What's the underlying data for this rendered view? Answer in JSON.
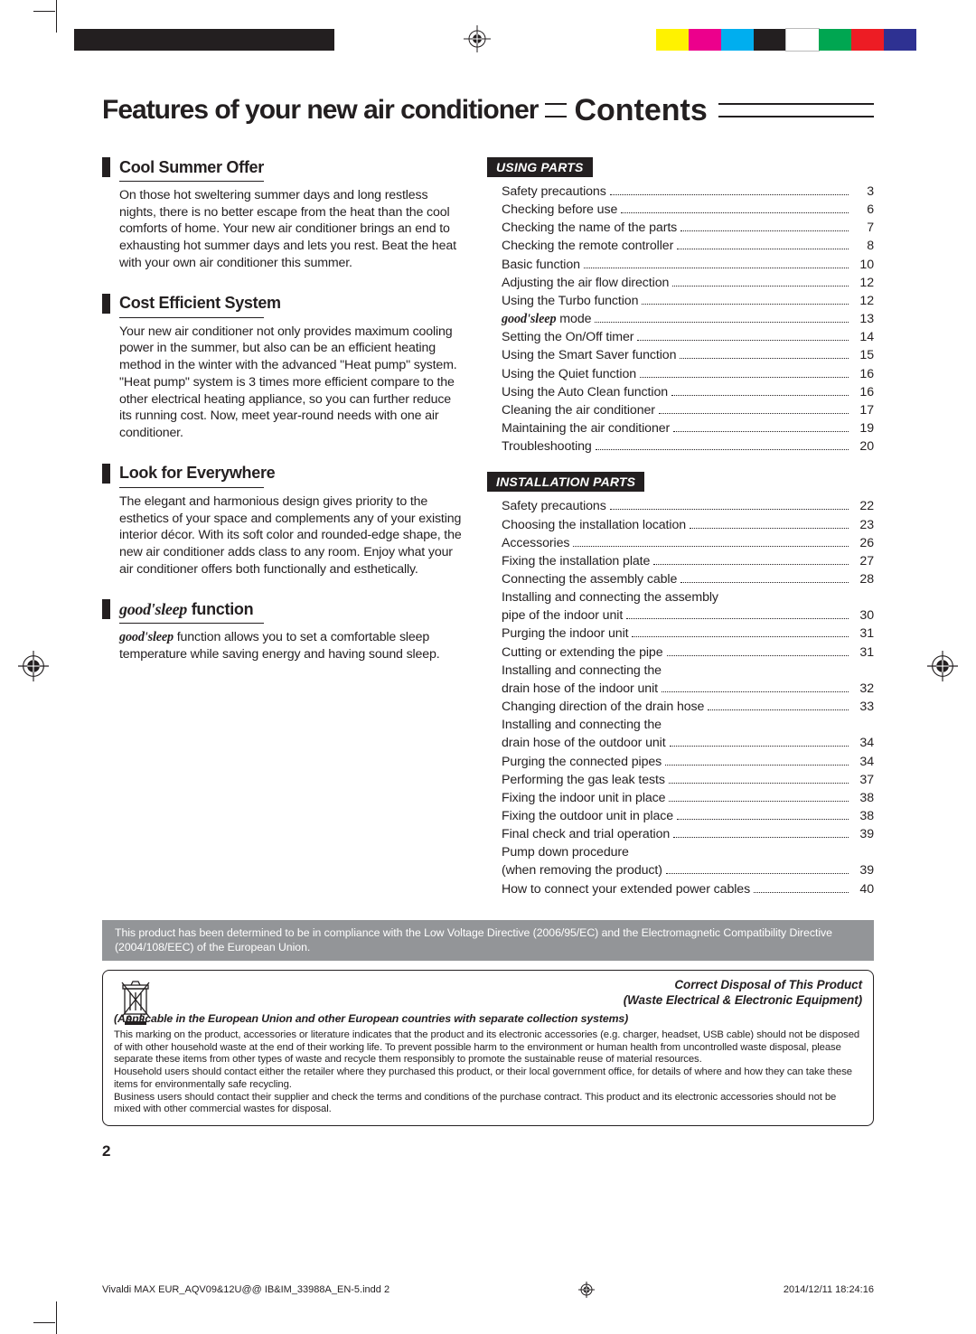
{
  "registration_colorbar_left": [
    "#231f20",
    "#231f20",
    "#231f20",
    "#231f20",
    "#231f20",
    "#231f20",
    "#231f20",
    "#231f20"
  ],
  "registration_colorbar_right": [
    "#fff200",
    "#ec008c",
    "#00aeef",
    "#231f20",
    "#ffffff",
    "#00a651",
    "#ed1c24",
    "#2e3192"
  ],
  "titles": {
    "features": "Features of your new air conditioner",
    "contents": "Contents"
  },
  "features": [
    {
      "title": "Cool Summer Offer",
      "body": "On those hot sweltering summer days and long restless nights, there is no better escape from the heat than the cool comforts of home. Your new air conditioner brings an end to exhausting hot summer days and lets you rest. Beat the heat with your own air conditioner this summer."
    },
    {
      "title": "Cost Efficient System",
      "body": "Your new air conditioner not only provides maximum cooling power in the summer, but also can be an efficient heating method in the winter with the advanced \"Heat pump\" system. \"Heat pump\" system is 3 times more efficient compare to the other electrical heating appliance, so you can further reduce its running cost. Now, meet year-round needs with one air conditioner."
    },
    {
      "title": "Look for Everywhere",
      "body": "The elegant and harmonious design gives priority to the esthetics of your space and complements any of your existing interior décor. With its soft color and rounded-edge shape, the new air conditioner adds class to any room. Enjoy what your air conditioner offers both functionally and esthetically."
    }
  ],
  "good_sleep": {
    "title_prefix": "good'sleep",
    "title_suffix": " function",
    "body_prefix": "good'sleep",
    "body": " function allows you to set a comfortable sleep temperature while saving energy and having sound sleep."
  },
  "toc": {
    "using": {
      "label": "USING PARTS",
      "items": [
        {
          "t": "Safety precautions",
          "p": "3"
        },
        {
          "t": "Checking before use",
          "p": "6"
        },
        {
          "t": "Checking the name of the parts",
          "p": "7"
        },
        {
          "t": "Checking the remote controller",
          "p": "8"
        },
        {
          "t": "Basic function",
          "p": "10"
        },
        {
          "t": "Adjusting the air flow direction",
          "p": "12"
        },
        {
          "t": "Using the Turbo function",
          "p": "12"
        },
        {
          "t_prefix": "good'sleep",
          "t": " mode",
          "p": "13"
        },
        {
          "t": "Setting the On/Off timer",
          "p": "14"
        },
        {
          "t": "Using the Smart Saver function",
          "p": "15"
        },
        {
          "t": "Using the Quiet function",
          "p": "16"
        },
        {
          "t": "Using the Auto Clean function",
          "p": "16"
        },
        {
          "t": "Cleaning the air conditioner",
          "p": "17"
        },
        {
          "t": "Maintaining the air conditioner",
          "p": "19"
        },
        {
          "t": "Troubleshooting",
          "p": "20"
        }
      ]
    },
    "install": {
      "label": "INSTALLATION PARTS",
      "items": [
        {
          "t": "Safety precautions",
          "p": "22"
        },
        {
          "t": "Choosing the installation location",
          "p": "23"
        },
        {
          "t": "Accessories",
          "p": "26"
        },
        {
          "t": "Fixing the installation plate",
          "p": "27"
        },
        {
          "t": "Connecting the assembly cable",
          "p": "28"
        },
        {
          "t": "Installing and connecting the assembly",
          "nopage": true
        },
        {
          "t": "pipe of the indoor unit",
          "p": "30"
        },
        {
          "t": "Purging the indoor unit",
          "p": "31"
        },
        {
          "t": "Cutting or extending the pipe",
          "p": "31"
        },
        {
          "t": "Installing and connecting the",
          "nopage": true
        },
        {
          "t": "drain hose of the indoor unit",
          "p": "32"
        },
        {
          "t": "Changing direction of the drain hose",
          "p": "33"
        },
        {
          "t": "Installing and connecting the",
          "nopage": true
        },
        {
          "t": "drain hose of the outdoor unit",
          "p": "34"
        },
        {
          "t": "Purging the connected pipes",
          "p": "34"
        },
        {
          "t": "Performing the gas leak tests",
          "p": "37"
        },
        {
          "t": "Fixing the indoor unit in place",
          "p": "38"
        },
        {
          "t": "Fixing the outdoor unit in place",
          "p": "38"
        },
        {
          "t": "Final check and trial operation",
          "p": "39"
        },
        {
          "t": "Pump down procedure",
          "nopage": true
        },
        {
          "t": "(when removing the product)",
          "p": "39"
        },
        {
          "t": "How to connect your extended power cables",
          "p": "40"
        }
      ]
    }
  },
  "notice": "This product has been determined to be in compliance with the Low Voltage Directive (2006/95/EC) and the Electromagnetic Compatibility Directive (2004/108/EEC) of the European Union.",
  "disposal": {
    "head1": "Correct Disposal of This Product",
    "head2": "(Waste Electrical & Electronic Equipment)",
    "sub": "(Applicable in the European Union and other European countries with separate collection systems)",
    "p1": "This marking on the product, accessories or literature indicates that the product and its electronic accessories (e.g. charger, headset, USB cable) should not be disposed of with other household waste at the end of their working life. To prevent possible harm to the environment or human health from uncontrolled waste disposal, please separate these items from other types of waste and recycle them responsibly to promote the sustainable reuse of material resources.",
    "p2": "Household users should contact either the retailer where they purchased this product, or their local government office, for details of where and how they can take these items for environmentally safe recycling.",
    "p3": "Business users should contact their supplier and check the terms and conditions of the purchase contract. This product and its electronic accessories should not be mixed with other commercial wastes for disposal."
  },
  "page_number": "2",
  "footer": {
    "file": "Vivaldi MAX EUR_AQV09&12U@@ IB&IM_33988A_EN-5.indd   2",
    "date": "2014/12/11   18:24:16"
  }
}
